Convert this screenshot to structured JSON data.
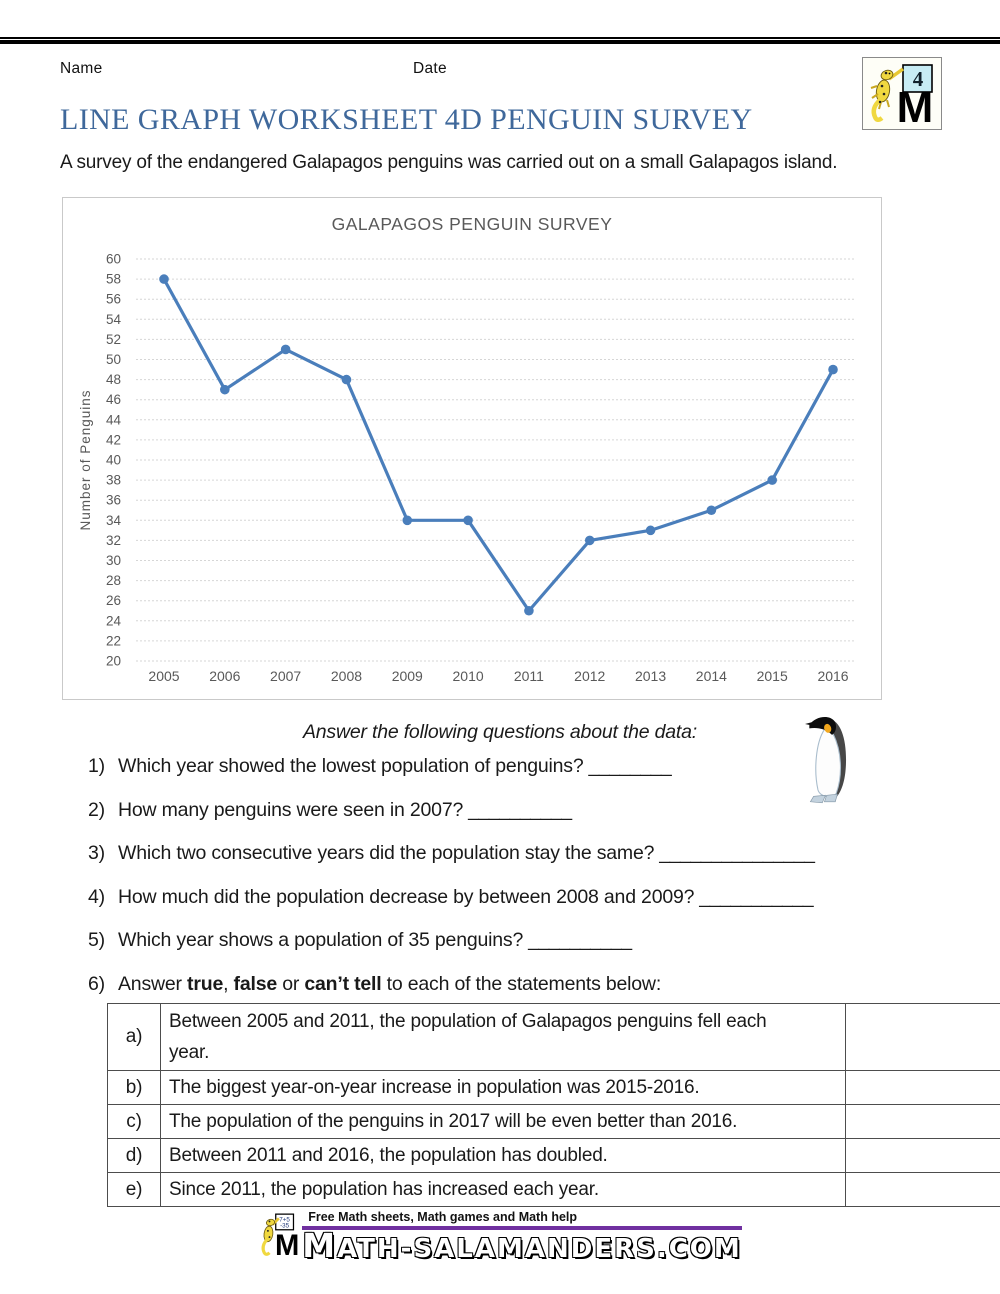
{
  "header": {
    "name_label": "Name",
    "date_label": "Date",
    "logo_number": "4"
  },
  "title": "LINE GRAPH WORKSHEET 4D PENGUIN SURVEY",
  "subtitle": "A survey of the endangered Galapagos penguins was carried out on a small Galapagos island.",
  "chart_data": {
    "type": "line",
    "title": "GALAPAGOS PENGUIN SURVEY",
    "xlabel": "",
    "ylabel": "Number of Penguins",
    "categories": [
      "2005",
      "2006",
      "2007",
      "2008",
      "2009",
      "2010",
      "2011",
      "2012",
      "2013",
      "2014",
      "2015",
      "2016"
    ],
    "values": [
      58,
      47,
      51,
      48,
      34,
      34,
      25,
      32,
      33,
      35,
      38,
      49
    ],
    "ylim": [
      20,
      60
    ],
    "ytick_step": 2,
    "grid": true,
    "legend": "none",
    "line_color": "#4a7ebb",
    "gridline_color": "#d6d6d6",
    "tick_color": "#595959"
  },
  "questions": {
    "instruction": "Answer the following questions about the data:",
    "items": [
      {
        "num": "1)",
        "text": "Which year showed the lowest population of penguins?",
        "blank": "________"
      },
      {
        "num": "2)",
        "text": "How many penguins were seen in 2007?",
        "blank": "__________"
      },
      {
        "num": "3)",
        "text": "Which two consecutive years did the population stay the same?",
        "blank": "_______________"
      },
      {
        "num": "4)",
        "text": "How much did the population decrease by between 2008 and 2009?",
        "blank": "___________"
      },
      {
        "num": "5)",
        "text": "Which year shows a population of 35 penguins?",
        "blank": "__________"
      }
    ],
    "q6": {
      "num": "6)",
      "prefix": "Answer ",
      "bold1": "true",
      "sep1": ", ",
      "bold2": "false",
      "sep2": " or ",
      "bold3": "can’t tell",
      "suffix": " to each of the statements below:"
    }
  },
  "statements_table": {
    "rows": [
      {
        "letter": "a)",
        "text": "Between 2005 and 2011, the population of Galapagos penguins fell each year.",
        "answer": ""
      },
      {
        "letter": "b)",
        "text": "The biggest year-on-year increase in population was 2015-2016.",
        "answer": ""
      },
      {
        "letter": "c)",
        "text": "The population of the penguins in 2017 will be even better than 2016.",
        "answer": ""
      },
      {
        "letter": "d)",
        "text": "Between 2011 and 2016, the population has doubled.",
        "answer": ""
      },
      {
        "letter": "e)",
        "text": "Since 2011, the population has increased each year.",
        "answer": ""
      }
    ]
  },
  "footer": {
    "tagline": "Free Math sheets, Math games and Math help",
    "site": "MATH-SALAMANDERS.COM"
  }
}
